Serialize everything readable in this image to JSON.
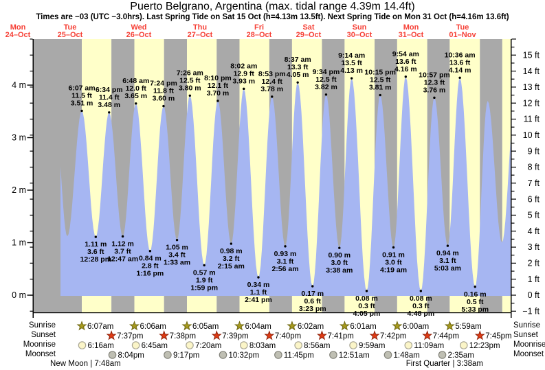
{
  "title": "Puerto Belgrano, Argentina (max. tidal range 4.39m 14.4ft)",
  "subtitle": "Times are −03 (UTC −3.0hrs). Last Spring Tide on Sat 15 Oct (h=4.13m 13.5ft). Next Spring Tide on Mon 31 Oct (h=4.16m 13.6ft)",
  "days": [
    {
      "name": "Mon",
      "date": "24–Oct"
    },
    {
      "name": "Tue",
      "date": "25–Oct"
    },
    {
      "name": "Wed",
      "date": "26–Oct"
    },
    {
      "name": "Thu",
      "date": "27–Oct"
    },
    {
      "name": "Fri",
      "date": "28–Oct"
    },
    {
      "name": "Sat",
      "date": "29–Oct"
    },
    {
      "name": "Sun",
      "date": "30–Oct"
    },
    {
      "name": "Mon",
      "date": "31–Oct"
    },
    {
      "name": "Tue",
      "date": "01–Nov"
    }
  ],
  "chart_data": {
    "type": "area",
    "title": "Puerto Belgrano, Argentina (max. tidal range 4.39m 14.4ft)",
    "ylabel_left": "meters",
    "ylabel_right": "feet",
    "y_left_tick_labels": [
      "4 m",
      "3 m",
      "2 m",
      "1 m",
      "0 m"
    ],
    "y_right_tick_labels": [
      "15 ft",
      "14 ft",
      "13 ft",
      "12 ft",
      "11 ft",
      "10 ft",
      "9 ft",
      "8 ft",
      "7 ft",
      "6 ft",
      "5 ft",
      "4 ft",
      "3 ft",
      "2 ft",
      "1 ft",
      "0 ft",
      "−1 ft"
    ],
    "x_unit": "hours since Mon 24-Oct 00:00",
    "events": [
      {
        "kind": "high",
        "time": "6:07 am",
        "ft": "11.5 ft",
        "m": "3.51 m",
        "h": 30.117,
        "value_m": 3.51
      },
      {
        "kind": "low",
        "time": "12:28 pm",
        "ft": "3.6 ft",
        "m": "1.11 m",
        "h": 36.467,
        "value_m": 1.11
      },
      {
        "kind": "high",
        "time": "6:34 pm",
        "ft": "11.4 ft",
        "m": "3.48 m",
        "h": 42.567,
        "value_m": 3.48
      },
      {
        "kind": "low",
        "time": "12:47 am",
        "ft": "3.7 ft",
        "m": "1.12 m",
        "h": 48.783,
        "value_m": 1.12
      },
      {
        "kind": "high",
        "time": "6:48 am",
        "ft": "12.0 ft",
        "m": "3.65 m",
        "h": 54.8,
        "value_m": 3.65
      },
      {
        "kind": "low",
        "time": "1:16 pm",
        "ft": "2.8 ft",
        "m": "0.84 m",
        "h": 61.267,
        "value_m": 0.84
      },
      {
        "kind": "high",
        "time": "7:24 pm",
        "ft": "11.8 ft",
        "m": "3.60 m",
        "h": 67.4,
        "value_m": 3.6
      },
      {
        "kind": "low",
        "time": "1:33 am",
        "ft": "3.4 ft",
        "m": "1.05 m",
        "h": 73.55,
        "value_m": 1.05
      },
      {
        "kind": "high",
        "time": "7:26 am",
        "ft": "12.5 ft",
        "m": "3.80 m",
        "h": 79.433,
        "value_m": 3.8
      },
      {
        "kind": "low",
        "time": "1:59 pm",
        "ft": "1.9 ft",
        "m": "0.57 m",
        "h": 85.983,
        "value_m": 0.57
      },
      {
        "kind": "high",
        "time": "8:10 pm",
        "ft": "12.1 ft",
        "m": "3.70 m",
        "h": 92.167,
        "value_m": 3.7
      },
      {
        "kind": "low",
        "time": "2:15 am",
        "ft": "3.2 ft",
        "m": "0.98 m",
        "h": 98.25,
        "value_m": 0.98
      },
      {
        "kind": "high",
        "time": "8:02 am",
        "ft": "12.9 ft",
        "m": "3.93 m",
        "h": 104.033,
        "value_m": 3.93
      },
      {
        "kind": "low",
        "time": "2:41 pm",
        "ft": "1.1 ft",
        "m": "0.34 m",
        "h": 110.683,
        "value_m": 0.34
      },
      {
        "kind": "high",
        "time": "8:53 pm",
        "ft": "12.4 ft",
        "m": "3.78 m",
        "h": 116.883,
        "value_m": 3.78
      },
      {
        "kind": "low",
        "time": "2:56 am",
        "ft": "3.1 ft",
        "m": "0.93 m",
        "h": 122.933,
        "value_m": 0.93
      },
      {
        "kind": "high",
        "time": "8:37 am",
        "ft": "13.3 ft",
        "m": "4.05 m",
        "h": 128.617,
        "value_m": 4.05
      },
      {
        "kind": "low",
        "time": "3:23 pm",
        "ft": "0.6 ft",
        "m": "0.17 m",
        "h": 135.383,
        "value_m": 0.17
      },
      {
        "kind": "high",
        "time": "9:34 pm",
        "ft": "12.5 ft",
        "m": "3.82 m",
        "h": 141.567,
        "value_m": 3.82
      },
      {
        "kind": "low",
        "time": "3:38 am",
        "ft": "3.0 ft",
        "m": "0.90 m",
        "h": 147.633,
        "value_m": 0.9
      },
      {
        "kind": "high",
        "time": "9:14 am",
        "ft": "13.5 ft",
        "m": "4.13 m",
        "h": 153.233,
        "value_m": 4.13
      },
      {
        "kind": "low",
        "time": "4:05 pm",
        "ft": "0.3 ft",
        "m": "0.08 m",
        "h": 160.083,
        "value_m": 0.08
      },
      {
        "kind": "high",
        "time": "10:15 pm",
        "ft": "12.5 ft",
        "m": "3.81 m",
        "h": 166.25,
        "value_m": 3.81
      },
      {
        "kind": "low",
        "time": "4:19 am",
        "ft": "3.0 ft",
        "m": "0.91 m",
        "h": 172.317,
        "value_m": 0.91
      },
      {
        "kind": "high",
        "time": "9:54 am",
        "ft": "13.6 ft",
        "m": "4.16 m",
        "h": 177.9,
        "value_m": 4.16
      },
      {
        "kind": "low",
        "time": "4:48 pm",
        "ft": "0.3 ft",
        "m": "0.08 m",
        "h": 184.8,
        "value_m": 0.08
      },
      {
        "kind": "high",
        "time": "10:57 pm",
        "ft": "12.3 ft",
        "m": "3.76 m",
        "h": 190.95,
        "value_m": 3.76
      },
      {
        "kind": "low",
        "time": "5:03 am",
        "ft": "3.1 ft",
        "m": "0.94 m",
        "h": 197.05,
        "value_m": 0.94
      },
      {
        "kind": "high",
        "time": "10:36 am",
        "ft": "13.6 ft",
        "m": "4.14 m",
        "h": 202.6,
        "value_m": 4.14
      },
      {
        "kind": "low",
        "time": "5:33 pm",
        "ft": "0.5 ft",
        "m": "0.16 m",
        "h": 209.55,
        "value_m": 0.16
      }
    ],
    "unlabeled_events": [
      {
        "h": 17.8,
        "value_m": 3.45,
        "estimated": true
      },
      {
        "h": 23.5,
        "value_m": 1.12,
        "estimated": true
      },
      {
        "h": 215.3,
        "value_m": 3.7,
        "estimated": true
      },
      {
        "h": 221.8,
        "value_m": 1.0,
        "estimated": true
      },
      {
        "h": 228.0,
        "value_m": 3.8,
        "estimated": true
      }
    ],
    "data_window_hours": [
      20.4,
      225.75
    ],
    "next_sunrise_h": 221.97
  },
  "astro": {
    "rows": [
      {
        "label": "Sunrise",
        "icon": "sunrise-star",
        "events": [
          {
            "time": "6:07am",
            "h": 30.117
          },
          {
            "time": "6:06am",
            "h": 54.1
          },
          {
            "time": "6:05am",
            "h": 78.083
          },
          {
            "time": "6:04am",
            "h": 102.067
          },
          {
            "time": "6:02am",
            "h": 126.033
          },
          {
            "time": "6:01am",
            "h": 150.017
          },
          {
            "time": "6:00am",
            "h": 174.0
          },
          {
            "time": "5:59am",
            "h": 197.983
          }
        ]
      },
      {
        "label": "Sunset",
        "icon": "sunset-star",
        "events": [
          {
            "time": "7:37pm",
            "h": 43.617
          },
          {
            "time": "7:38pm",
            "h": 67.633
          },
          {
            "time": "7:39pm",
            "h": 91.65
          },
          {
            "time": "7:40pm",
            "h": 115.667
          },
          {
            "time": "7:41pm",
            "h": 139.683
          },
          {
            "time": "7:42pm",
            "h": 163.7
          },
          {
            "time": "7:44pm",
            "h": 187.733
          },
          {
            "time": "7:45pm",
            "h": 211.75
          }
        ]
      },
      {
        "label": "Moonrise",
        "icon": "moonrise-circle",
        "events": [
          {
            "time": "6:16am",
            "h": 30.267
          },
          {
            "time": "6:45am",
            "h": 54.75
          },
          {
            "time": "7:20am",
            "h": 79.333
          },
          {
            "time": "8:03am",
            "h": 104.05
          },
          {
            "time": "8:56am",
            "h": 128.933
          },
          {
            "time": "9:59am",
            "h": 153.983
          },
          {
            "time": "11:09am",
            "h": 179.15
          },
          {
            "time": "12:23pm",
            "h": 204.383
          }
        ]
      },
      {
        "label": "Moonset",
        "icon": "moonset-circle",
        "events": [
          {
            "time": "8:04pm",
            "h": 44.067
          },
          {
            "time": "9:17pm",
            "h": 69.283
          },
          {
            "time": "10:32pm",
            "h": 94.533
          },
          {
            "time": "11:45pm",
            "h": 119.75
          },
          {
            "time": "12:51am",
            "h": 144.85
          },
          {
            "time": "1:48am",
            "h": 169.8
          },
          {
            "time": "2:35am",
            "h": 194.583
          }
        ]
      }
    ],
    "phases": [
      {
        "label": "New Moon | 7:48am",
        "h": 31.8
      },
      {
        "label": "First Quarter | 3:38am",
        "h": 195.633
      }
    ]
  },
  "colors": {
    "day_band": "#FFFFC9",
    "night_band": "#A9A9A9",
    "tide_fill": "#A6B6F2",
    "date_red": "#F63F35",
    "axis": "#000000",
    "sunrise_star": "#A89B1D",
    "sunrise_star_border": "#6F6812",
    "sunset_star": "#E13A13",
    "sunset_star_border": "#8E2008",
    "moonrise_fill": "#FBF5C8",
    "moonrise_border": "#A9A694",
    "moonset_fill": "#BFBFB3",
    "moonset_border": "#84847B"
  }
}
